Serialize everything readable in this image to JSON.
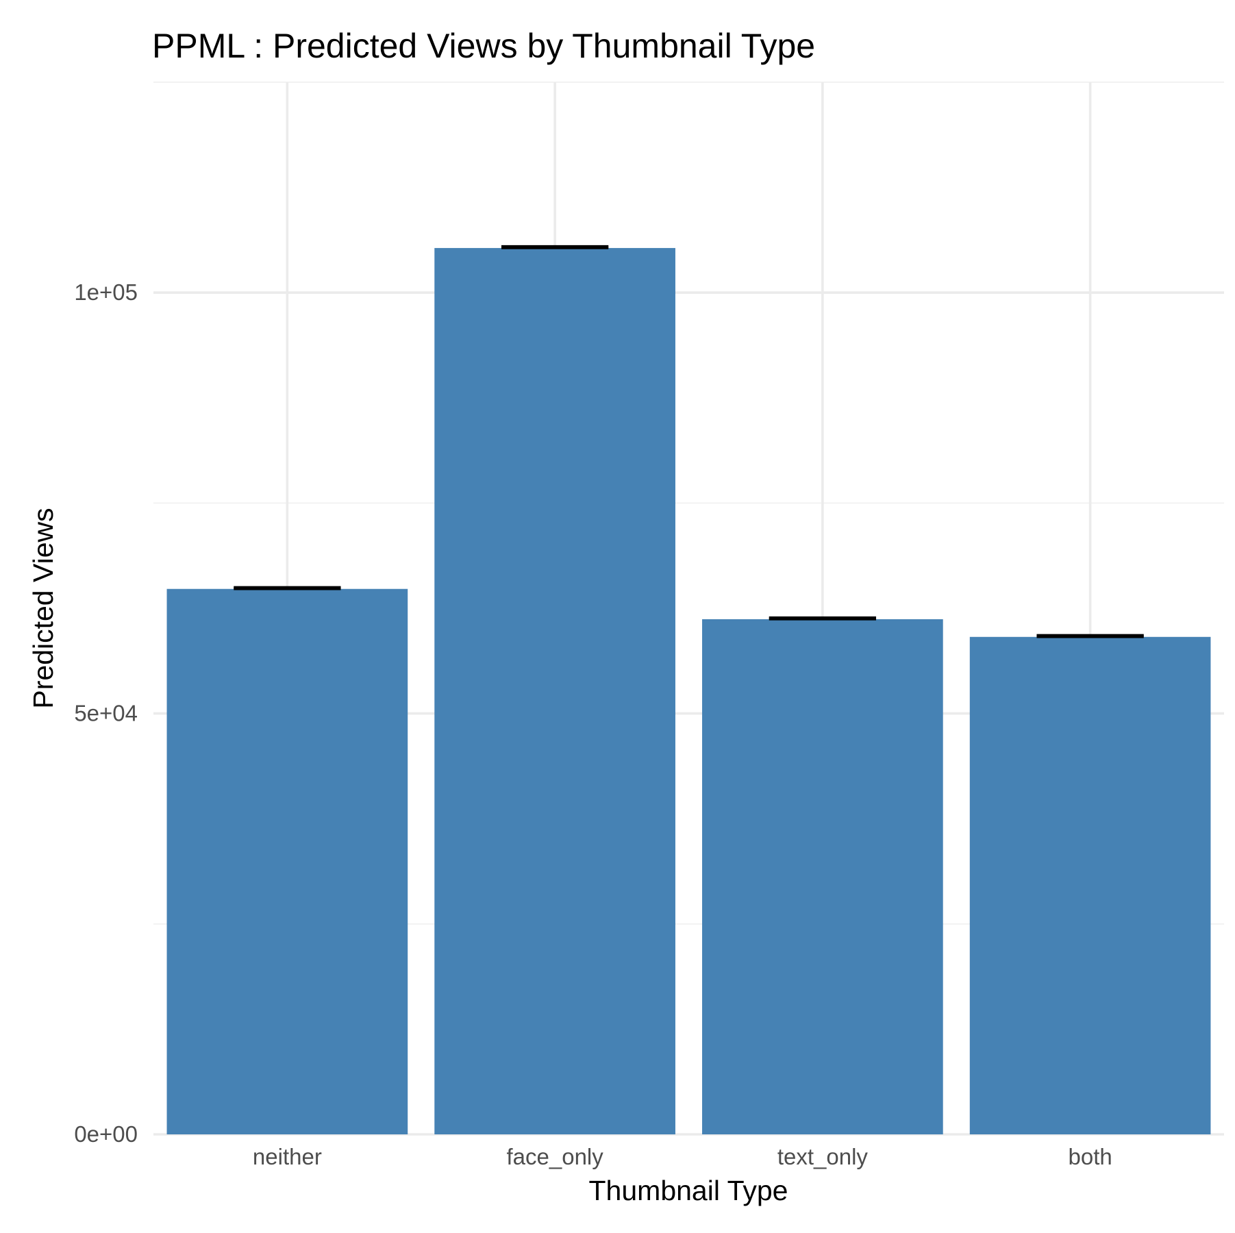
{
  "chart_data": {
    "type": "bar",
    "title": "PPML : Predicted Views by Thumbnail Type",
    "xlabel": "Thumbnail Type",
    "ylabel": "Predicted Views",
    "categories": [
      "neither",
      "face_only",
      "text_only",
      "both"
    ],
    "values": [
      64800,
      105300,
      61200,
      59100
    ],
    "error_upper": [
      65000,
      105500,
      61400,
      59300
    ],
    "error_lower": [
      64800,
      105300,
      61200,
      59100
    ],
    "ylim": [
      0,
      125000
    ],
    "yticks": [
      0,
      50000,
      100000
    ],
    "ytick_labels": [
      "0e+00",
      "5e+04",
      "1e+05"
    ],
    "grid": true,
    "legend": "none",
    "bar_color": "#4682B4",
    "errorbar_color": "#000000"
  }
}
